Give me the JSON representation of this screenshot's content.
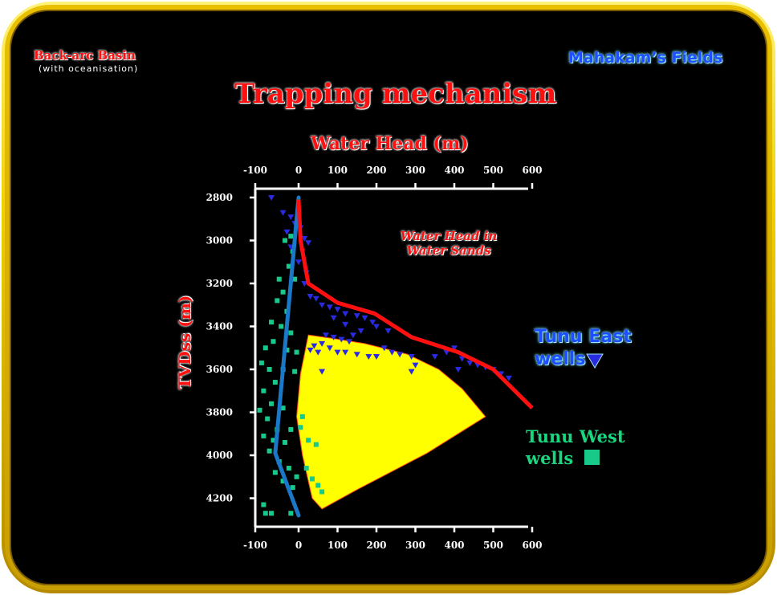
{
  "header": {
    "basin_title": "Back-arc Basin",
    "basin_subtitle": "(with oceanisation)",
    "fields_title": "Mahakam’s Fields",
    "main_title": "Trapping mechanism"
  },
  "colors": {
    "frame": "#f1d000",
    "background": "#000000",
    "water_head_line": "#ff1010",
    "west_trend_line": "#1a78c8",
    "east_points": "#2a2ae0",
    "west_points": "#18c98a",
    "hydrocarbon_zone": "#ffff00"
  },
  "chart_data": {
    "type": "scatter",
    "xlabel": "Water Head (m)",
    "ylabel": "TVDss (m)",
    "xlim": [
      -100,
      600
    ],
    "ylim": [
      2800,
      4300
    ],
    "y_inverted": true,
    "x_axes": "top and bottom",
    "grid": false,
    "x_ticks": [
      "-100",
      "0",
      "100",
      "200",
      "300",
      "400",
      "500",
      "600"
    ],
    "y_ticks": [
      "2800",
      "3000",
      "3200",
      "3400",
      "3600",
      "3800",
      "4000",
      "4200"
    ],
    "annotation": "Water Head in Water Sands",
    "water_head_line": [
      {
        "x": 0,
        "y": 2810
      },
      {
        "x": 5,
        "y": 3000
      },
      {
        "x": 25,
        "y": 3200
      },
      {
        "x": 100,
        "y": 3290
      },
      {
        "x": 195,
        "y": 3340
      },
      {
        "x": 290,
        "y": 3450
      },
      {
        "x": 410,
        "y": 3520
      },
      {
        "x": 500,
        "y": 3600
      },
      {
        "x": 600,
        "y": 3780
      }
    ],
    "west_trend_line": [
      {
        "x": 0,
        "y": 2800
      },
      {
        "x": -60,
        "y": 3990
      },
      {
        "x": 0,
        "y": 4280
      }
    ],
    "hydrocarbon_zone": [
      {
        "x": 5,
        "y": 3620
      },
      {
        "x": 25,
        "y": 3440
      },
      {
        "x": 85,
        "y": 3455
      },
      {
        "x": 170,
        "y": 3480
      },
      {
        "x": 280,
        "y": 3530
      },
      {
        "x": 360,
        "y": 3600
      },
      {
        "x": 420,
        "y": 3690
      },
      {
        "x": 480,
        "y": 3820
      },
      {
        "x": 330,
        "y": 3990
      },
      {
        "x": 150,
        "y": 4160
      },
      {
        "x": 60,
        "y": 4250
      },
      {
        "x": 35,
        "y": 4200
      },
      {
        "x": 10,
        "y": 4000
      },
      {
        "x": -5,
        "y": 3820
      }
    ],
    "series": [
      {
        "name": "Tunu East wells",
        "marker": "triangle-down",
        "points": [
          [
            -70,
            2800
          ],
          [
            -40,
            2870
          ],
          [
            -20,
            2890
          ],
          [
            -10,
            2920
          ],
          [
            -30,
            2960
          ],
          [
            5,
            2940
          ],
          [
            15,
            2990
          ],
          [
            25,
            3010
          ],
          [
            -20,
            3030
          ],
          [
            10,
            3050
          ],
          [
            0,
            3100
          ],
          [
            20,
            3150
          ],
          [
            15,
            3200
          ],
          [
            30,
            3260
          ],
          [
            45,
            3270
          ],
          [
            60,
            3300
          ],
          [
            80,
            3310
          ],
          [
            100,
            3320
          ],
          [
            120,
            3340
          ],
          [
            150,
            3350
          ],
          [
            170,
            3360
          ],
          [
            190,
            3380
          ],
          [
            200,
            3400
          ],
          [
            230,
            3420
          ],
          [
            160,
            3420
          ],
          [
            140,
            3440
          ],
          [
            130,
            3470
          ],
          [
            110,
            3460
          ],
          [
            90,
            3450
          ],
          [
            70,
            3440
          ],
          [
            60,
            3480
          ],
          [
            40,
            3490
          ],
          [
            30,
            3510
          ],
          [
            50,
            3520
          ],
          [
            80,
            3500
          ],
          [
            100,
            3520
          ],
          [
            120,
            3520
          ],
          [
            150,
            3530
          ],
          [
            180,
            3540
          ],
          [
            200,
            3540
          ],
          [
            220,
            3500
          ],
          [
            240,
            3520
          ],
          [
            260,
            3530
          ],
          [
            290,
            3540
          ],
          [
            60,
            3610
          ],
          [
            290,
            3610
          ],
          [
            350,
            3540
          ],
          [
            380,
            3520
          ],
          [
            400,
            3500
          ],
          [
            420,
            3550
          ],
          [
            440,
            3570
          ],
          [
            460,
            3580
          ],
          [
            480,
            3590
          ],
          [
            500,
            3600
          ],
          [
            520,
            3620
          ],
          [
            540,
            3640
          ],
          [
            410,
            3600
          ],
          [
            300,
            3580
          ],
          [
            120,
            3390
          ],
          [
            90,
            3360
          ]
        ]
      },
      {
        "name": "Tunu West wells",
        "marker": "square",
        "points": [
          [
            -20,
            2980
          ],
          [
            -15,
            3050
          ],
          [
            -25,
            3120
          ],
          [
            -10,
            3180
          ],
          [
            -40,
            3240
          ],
          [
            -55,
            3280
          ],
          [
            -30,
            3330
          ],
          [
            -70,
            3380
          ],
          [
            -45,
            3400
          ],
          [
            -20,
            3430
          ],
          [
            -65,
            3470
          ],
          [
            -85,
            3500
          ],
          [
            -30,
            3510
          ],
          [
            -5,
            3520
          ],
          [
            -95,
            3570
          ],
          [
            -75,
            3600
          ],
          [
            -40,
            3600
          ],
          [
            -10,
            3610
          ],
          [
            -60,
            3660
          ],
          [
            -90,
            3700
          ],
          [
            -100,
            3790
          ],
          [
            -70,
            3760
          ],
          [
            -40,
            3780
          ],
          [
            -80,
            3830
          ],
          [
            -55,
            3880
          ],
          [
            -20,
            3880
          ],
          [
            -90,
            3910
          ],
          [
            -65,
            3930
          ],
          [
            -35,
            3940
          ],
          [
            -75,
            3980
          ],
          [
            -50,
            4030
          ],
          [
            -25,
            4060
          ],
          [
            -60,
            4080
          ],
          [
            -40,
            4120
          ],
          [
            -15,
            4150
          ],
          [
            -5,
            4100
          ],
          [
            5,
            3870
          ],
          [
            10,
            3820
          ],
          [
            20,
            4060
          ],
          [
            35,
            4110
          ],
          [
            50,
            4140
          ],
          [
            60,
            4170
          ],
          [
            45,
            3950
          ],
          [
            25,
            3930
          ],
          [
            -85,
            4270
          ],
          [
            -70,
            4270
          ],
          [
            -20,
            4270
          ],
          [
            -90,
            4230
          ],
          [
            -50,
            3180
          ],
          [
            -35,
            3000
          ]
        ]
      }
    ]
  }
}
